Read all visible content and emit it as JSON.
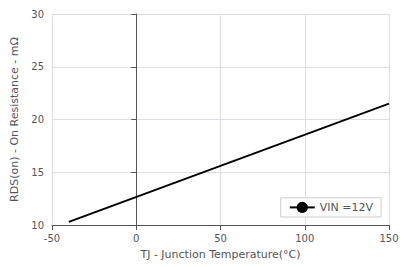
{
  "chart_data": {
    "type": "line",
    "x": [
      -40,
      150
    ],
    "series": [
      {
        "name": "VIN =12V",
        "color": "#000000",
        "values": [
          10.3,
          21.5
        ]
      }
    ],
    "xlabel": "TJ - Junction Temperature(°C)",
    "ylabel": "RDS(on) - On Resistance - mΩ",
    "xlim": [
      -50,
      150
    ],
    "ylim": [
      10,
      30
    ],
    "xticks": [
      -50,
      0,
      50,
      100,
      150
    ],
    "yticks": [
      10,
      15,
      20,
      25,
      30
    ],
    "grid": true,
    "legend": "lower right"
  }
}
